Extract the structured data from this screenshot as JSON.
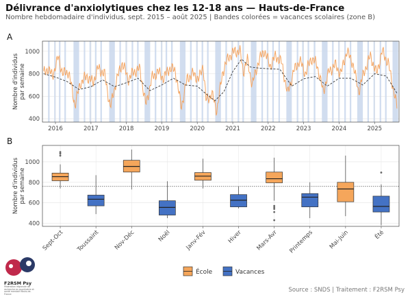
{
  "title": "Délivrance d'anxiolytiques chez les 12-18 ans — Hauts-de-France",
  "subtitle": "Nombre hebdomadaire d'individus, sept. 2015 – août 2025 | Bandes colorées = vacances scolaires (zone B)",
  "caption": "Source : SNDS | Traitement : F2RSM Psy",
  "logo": {
    "name": "F2RSM Psy",
    "subtitle": "Fédération régionale de recherche en psychiatrie et santé mentale Hauts-de-France"
  },
  "colors": {
    "line": "#F4A460",
    "trend": "#333333",
    "vacation_band": "#C9D7EC",
    "ecole": "#F5A65B",
    "vacances": "#4472C4",
    "panel_bg": "#FFFFFF",
    "grid": "#E3E3E3"
  },
  "chart_data": [
    {
      "panel": "A",
      "type": "line",
      "xlabel": "",
      "ylabel": "Nombre d'individus par semaine",
      "x_ticks": [
        "2016",
        "2017",
        "2018",
        "2019",
        "2020",
        "2021",
        "2022",
        "2023",
        "2024",
        "2025"
      ],
      "y_ticks": [
        400,
        600,
        800,
        1000
      ],
      "xlim": [
        "2015-08-20",
        "2025-09-10"
      ],
      "ylim": [
        370,
        1090
      ],
      "grid": true,
      "vacation_bands": [
        [
          "2015-10-17",
          "2015-11-02"
        ],
        [
          "2015-12-19",
          "2016-01-04"
        ],
        [
          "2016-02-06",
          "2016-02-22"
        ],
        [
          "2016-04-02",
          "2016-04-18"
        ],
        [
          "2016-07-05",
          "2016-09-01"
        ],
        [
          "2016-10-19",
          "2016-11-03"
        ],
        [
          "2016-12-17",
          "2017-01-03"
        ],
        [
          "2017-02-11",
          "2017-02-27"
        ],
        [
          "2017-04-08",
          "2017-04-24"
        ],
        [
          "2017-07-08",
          "2017-09-04"
        ],
        [
          "2017-10-21",
          "2017-11-06"
        ],
        [
          "2017-12-23",
          "2018-01-08"
        ],
        [
          "2018-02-24",
          "2018-03-12"
        ],
        [
          "2018-04-21",
          "2018-05-07"
        ],
        [
          "2018-07-07",
          "2018-09-03"
        ],
        [
          "2018-10-20",
          "2018-11-05"
        ],
        [
          "2018-12-22",
          "2019-01-07"
        ],
        [
          "2019-02-09",
          "2019-02-25"
        ],
        [
          "2019-04-06",
          "2019-04-23"
        ],
        [
          "2019-07-06",
          "2019-09-02"
        ],
        [
          "2019-10-19",
          "2019-11-04"
        ],
        [
          "2019-12-21",
          "2020-01-06"
        ],
        [
          "2020-02-15",
          "2020-03-02"
        ],
        [
          "2020-04-11",
          "2020-04-27"
        ],
        [
          "2020-07-04",
          "2020-09-01"
        ],
        [
          "2020-10-17",
          "2020-11-02"
        ],
        [
          "2020-12-19",
          "2021-01-04"
        ],
        [
          "2021-02-20",
          "2021-03-08"
        ],
        [
          "2021-04-10",
          "2021-04-26"
        ],
        [
          "2021-07-06",
          "2021-09-02"
        ],
        [
          "2021-10-23",
          "2021-11-08"
        ],
        [
          "2021-12-18",
          "2022-01-03"
        ],
        [
          "2022-02-12",
          "2022-02-28"
        ],
        [
          "2022-04-16",
          "2022-05-02"
        ],
        [
          "2022-07-07",
          "2022-09-01"
        ],
        [
          "2022-10-22",
          "2022-11-07"
        ],
        [
          "2022-12-17",
          "2023-01-03"
        ],
        [
          "2023-02-11",
          "2023-02-27"
        ],
        [
          "2023-04-15",
          "2023-05-02"
        ],
        [
          "2023-07-08",
          "2023-09-04"
        ],
        [
          "2023-10-21",
          "2023-11-06"
        ],
        [
          "2023-12-23",
          "2024-01-08"
        ],
        [
          "2024-02-24",
          "2024-03-11"
        ],
        [
          "2024-04-20",
          "2024-05-06"
        ],
        [
          "2024-07-06",
          "2024-09-02"
        ],
        [
          "2024-10-19",
          "2024-11-04"
        ],
        [
          "2024-12-21",
          "2025-01-06"
        ],
        [
          "2025-02-22",
          "2025-03-10"
        ],
        [
          "2025-04-19",
          "2025-05-05"
        ],
        [
          "2025-07-05",
          "2025-09-01"
        ]
      ],
      "trend": {
        "x": [
          "2015-09-01",
          "2016-01-01",
          "2016-05-01",
          "2016-09-01",
          "2017-01-01",
          "2017-05-01",
          "2017-09-01",
          "2018-01-01",
          "2018-05-01",
          "2018-09-01",
          "2019-01-01",
          "2019-05-01",
          "2019-09-01",
          "2020-01-01",
          "2020-04-01",
          "2020-07-01",
          "2020-10-01",
          "2021-01-01",
          "2021-04-01",
          "2021-07-01",
          "2021-10-01",
          "2022-01-01",
          "2022-05-01",
          "2022-09-01",
          "2023-01-01",
          "2023-05-01",
          "2023-09-01",
          "2024-01-01",
          "2024-05-01",
          "2024-09-01",
          "2025-01-01",
          "2025-05-01",
          "2025-08-25"
        ],
        "y": [
          800,
          770,
          730,
          660,
          685,
          745,
          685,
          720,
          760,
          650,
          700,
          760,
          700,
          690,
          620,
          560,
          640,
          820,
          930,
          860,
          850,
          845,
          840,
          690,
          755,
          775,
          690,
          760,
          760,
          700,
          800,
          780,
          620
        ]
      },
      "weekly": {
        "anchors_x": [
          "2015-09-01",
          "2015-10-15",
          "2015-12-01",
          "2016-02-01",
          "2016-03-15",
          "2016-05-15",
          "2016-07-20",
          "2016-09-15",
          "2016-11-20",
          "2017-01-20",
          "2017-03-15",
          "2017-05-20",
          "2017-07-20",
          "2017-09-20",
          "2017-11-20",
          "2018-01-20",
          "2018-03-20",
          "2018-05-20",
          "2018-07-20",
          "2018-09-20",
          "2018-11-20",
          "2019-01-20",
          "2019-03-20",
          "2019-05-20",
          "2019-07-20",
          "2019-09-20",
          "2019-11-20",
          "2020-01-20",
          "2020-03-01",
          "2020-04-01",
          "2020-06-01",
          "2020-07-20",
          "2020-09-20",
          "2020-11-20",
          "2021-01-20",
          "2021-03-15",
          "2021-04-20",
          "2021-06-01",
          "2021-07-20",
          "2021-09-20",
          "2021-11-20",
          "2022-01-20",
          "2022-03-20",
          "2022-05-20",
          "2022-07-20",
          "2022-09-20",
          "2022-11-20",
          "2023-01-20",
          "2023-03-20",
          "2023-05-20",
          "2023-07-20",
          "2023-09-20",
          "2023-11-20",
          "2024-01-20",
          "2024-03-20",
          "2024-05-20",
          "2024-07-20",
          "2024-09-20",
          "2024-11-20",
          "2025-01-20",
          "2025-03-20",
          "2025-05-20",
          "2025-07-20",
          "2025-08-25"
        ],
        "anchors_y": [
          800,
          850,
          780,
          950,
          800,
          820,
          520,
          720,
          780,
          720,
          850,
          800,
          500,
          740,
          900,
          750,
          820,
          840,
          520,
          760,
          820,
          760,
          850,
          830,
          500,
          760,
          800,
          750,
          880,
          560,
          620,
          470,
          820,
          950,
          1000,
          1000,
          820,
          920,
          700,
          900,
          1010,
          870,
          960,
          900,
          620,
          820,
          920,
          800,
          940,
          880,
          640,
          820,
          880,
          800,
          1000,
          900,
          640,
          830,
          960,
          800,
          1000,
          900,
          640,
          480
        ]
      }
    },
    {
      "panel": "B",
      "type": "box",
      "xlabel": "",
      "ylabel": "Nombre d'individus par semaine",
      "categories": [
        "Sept-Oct",
        "Toussaint",
        "Nov-Déc",
        "Noël",
        "Janv-Fév",
        "Hiver",
        "Mars-Avr",
        "Printemps",
        "Mai-Juin",
        "Été"
      ],
      "groups": [
        "École",
        "Vacances",
        "École",
        "Vacances",
        "École",
        "Vacances",
        "École",
        "Vacances",
        "École",
        "Vacances"
      ],
      "y_ticks": [
        400,
        600,
        800,
        1000
      ],
      "ylim": [
        370,
        1160
      ],
      "reference_line": 760,
      "grid": true,
      "boxes": [
        {
          "min": 740,
          "q1": 815,
          "median": 855,
          "q3": 890,
          "max": 975,
          "outliers": [
            1060,
            1080,
            1095
          ]
        },
        {
          "min": 490,
          "q1": 570,
          "median": 635,
          "q3": 675,
          "max": 870,
          "outliers": []
        },
        {
          "min": 730,
          "q1": 900,
          "median": 955,
          "q3": 1015,
          "max": 1120,
          "outliers": []
        },
        {
          "min": 450,
          "q1": 480,
          "median": 555,
          "q3": 620,
          "max": 810,
          "outliers": []
        },
        {
          "min": 740,
          "q1": 820,
          "median": 860,
          "q3": 895,
          "max": 1030,
          "outliers": []
        },
        {
          "min": 545,
          "q1": 560,
          "median": 625,
          "q3": 680,
          "max": 760,
          "outliers": []
        },
        {
          "min": 620,
          "q1": 795,
          "median": 835,
          "q3": 900,
          "max": 1040,
          "outliers": [
            430,
            510,
            540,
            555,
            570
          ]
        },
        {
          "min": 450,
          "q1": 560,
          "median": 655,
          "q3": 690,
          "max": 800,
          "outliers": []
        },
        {
          "min": 470,
          "q1": 610,
          "median": 735,
          "q3": 800,
          "max": 1060,
          "outliers": []
        },
        {
          "min": 380,
          "q1": 510,
          "median": 565,
          "q3": 665,
          "max": 780,
          "outliers": [
            895
          ]
        }
      ],
      "legend": {
        "position": "bottom",
        "entries": [
          "École",
          "Vacances"
        ]
      }
    }
  ]
}
